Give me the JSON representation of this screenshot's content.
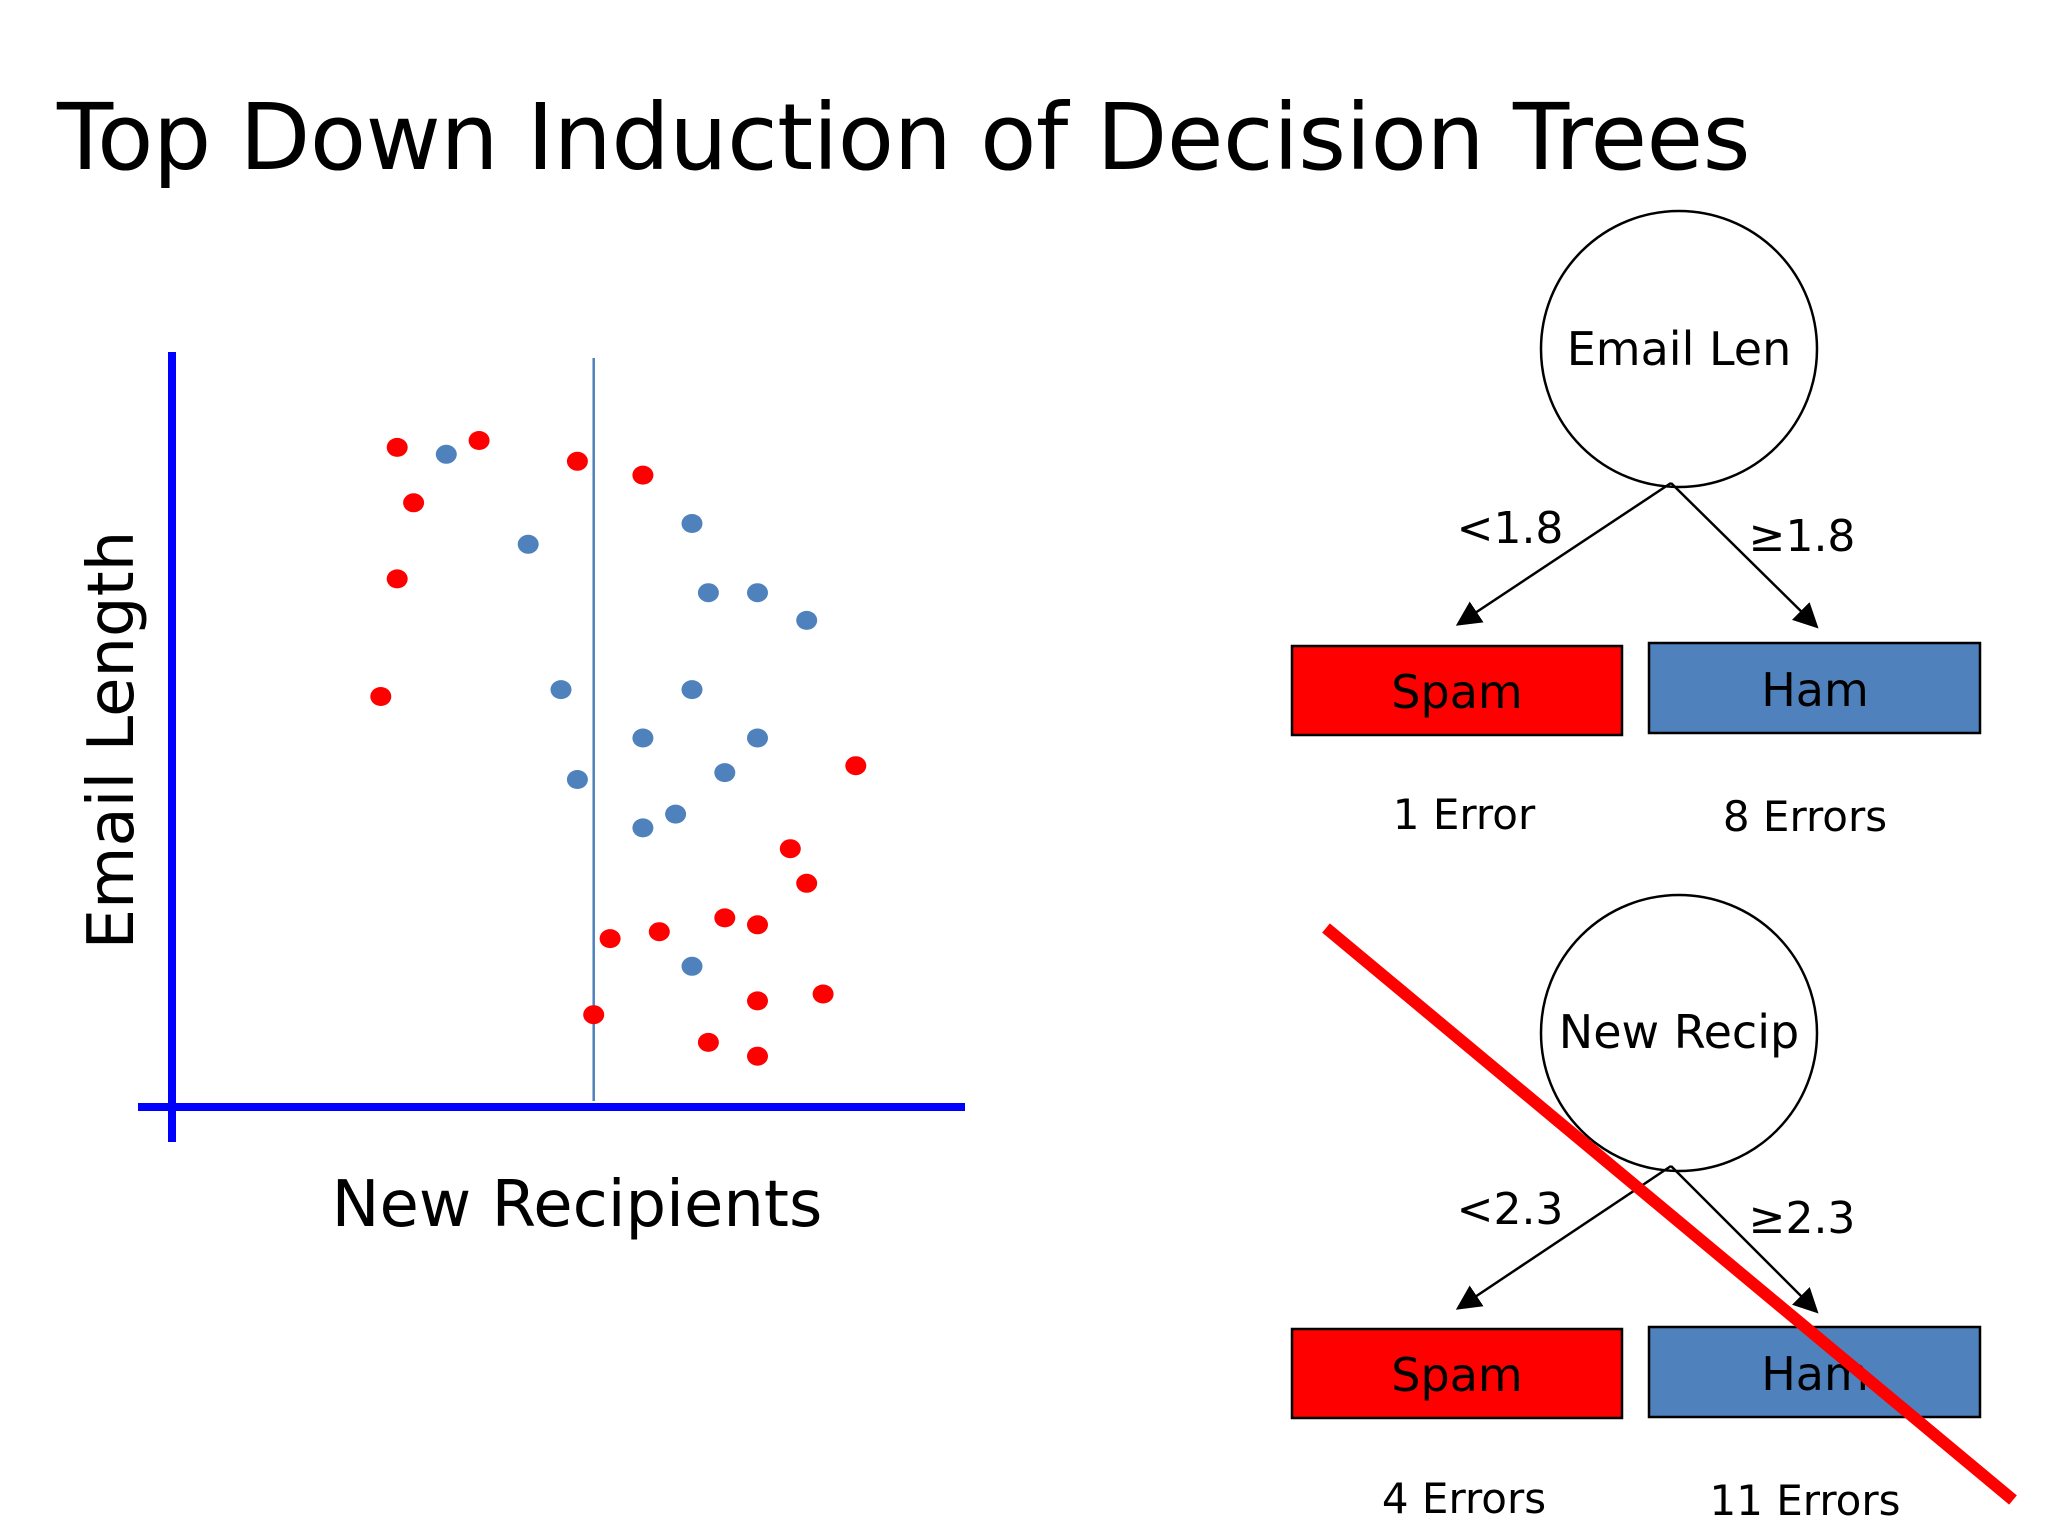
{
  "slide": {
    "title": "Top Down Induction of Decision Trees"
  },
  "colors": {
    "spam": "#ff0000",
    "ham": "#4f81bd",
    "axis": "#0000ff",
    "strike": "#ff0000",
    "node_stroke": "#000000"
  },
  "chart_data": {
    "type": "scatter",
    "title": "",
    "xlabel": "New Recipients",
    "ylabel": "Email Length",
    "split": {
      "axis": "x",
      "value": 2.3
    },
    "series": [
      {
        "color": "#ff0000",
        "points": [
          [
            1.1,
            9.1
          ],
          [
            1.6,
            9.2
          ],
          [
            2.2,
            8.9
          ],
          [
            2.6,
            8.7
          ],
          [
            1.2,
            8.3
          ],
          [
            1.1,
            7.2
          ],
          [
            1.0,
            5.5
          ],
          [
            3.9,
            4.5
          ],
          [
            3.6,
            2.8
          ],
          [
            3.5,
            3.3
          ],
          [
            2.4,
            2.0
          ],
          [
            2.7,
            2.1
          ],
          [
            3.1,
            2.3
          ],
          [
            3.3,
            2.2
          ],
          [
            2.3,
            0.9
          ],
          [
            3.3,
            1.1
          ],
          [
            3.7,
            1.2
          ],
          [
            3.0,
            0.5
          ],
          [
            3.3,
            0.3
          ]
        ]
      },
      {
        "color": "#4f81bd",
        "points": [
          [
            1.4,
            9.0
          ],
          [
            1.9,
            7.7
          ],
          [
            2.9,
            8.0
          ],
          [
            3.0,
            7.0
          ],
          [
            3.3,
            7.0
          ],
          [
            3.6,
            6.6
          ],
          [
            2.1,
            5.6
          ],
          [
            2.9,
            5.6
          ],
          [
            2.6,
            4.9
          ],
          [
            3.3,
            4.9
          ],
          [
            3.1,
            4.4
          ],
          [
            2.2,
            4.3
          ],
          [
            2.8,
            3.8
          ],
          [
            2.6,
            3.6
          ],
          [
            2.9,
            1.6
          ]
        ]
      }
    ]
  },
  "trees": [
    {
      "node_label": "Email Len",
      "left_threshold": "<1.8",
      "right_threshold": "≥1.8",
      "left_leaf": "Spam",
      "right_leaf": "Ham",
      "left_errors": "1 Error",
      "right_errors": "8 Errors",
      "struck": false
    },
    {
      "node_label": "New Recip",
      "left_threshold": "<2.3",
      "right_threshold": "≥2.3",
      "left_leaf": "Spam",
      "right_leaf": "Ham",
      "left_errors": "4 Errors",
      "right_errors": "11 Errors",
      "struck": true
    }
  ]
}
